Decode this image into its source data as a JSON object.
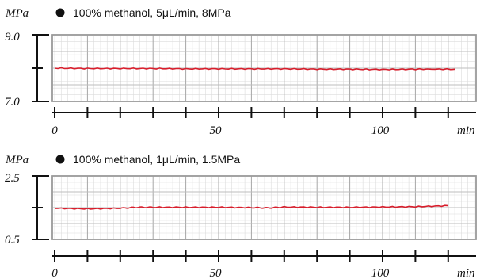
{
  "chart_data": [
    {
      "type": "line",
      "legend": "100% methanol, 5μL/min, 8MPa",
      "ylabel": "MPa",
      "xlabel": "min",
      "ylim": [
        7.0,
        9.0
      ],
      "xlim": [
        0,
        130
      ],
      "y_tick_labels": [
        "9.0",
        "7.0"
      ],
      "x_tick_labels": [
        "0",
        "50",
        "100"
      ],
      "grid": true,
      "series_color": "#d81e2c",
      "x": [
        0,
        10,
        20,
        30,
        40,
        50,
        60,
        70,
        80,
        90,
        100,
        110,
        122
      ],
      "y": [
        8.0,
        7.99,
        7.99,
        7.99,
        7.98,
        7.98,
        7.98,
        7.98,
        7.97,
        7.97,
        7.96,
        7.97,
        7.97
      ]
    },
    {
      "type": "line",
      "legend": "100% methanol, 1μL/min, 1.5MPa",
      "ylabel": "MPa",
      "xlabel": "min",
      "ylim": [
        0.5,
        2.5
      ],
      "xlim": [
        0,
        130
      ],
      "y_tick_labels": [
        "2.5",
        "0.5"
      ],
      "x_tick_labels": [
        "0",
        "50",
        "100"
      ],
      "grid": true,
      "series_color": "#d81e2c",
      "x": [
        0,
        10,
        20,
        25,
        30,
        40,
        50,
        60,
        65,
        70,
        80,
        90,
        100,
        110,
        120
      ],
      "y": [
        1.48,
        1.46,
        1.48,
        1.51,
        1.51,
        1.51,
        1.51,
        1.5,
        1.49,
        1.52,
        1.51,
        1.51,
        1.52,
        1.53,
        1.56
      ]
    }
  ]
}
